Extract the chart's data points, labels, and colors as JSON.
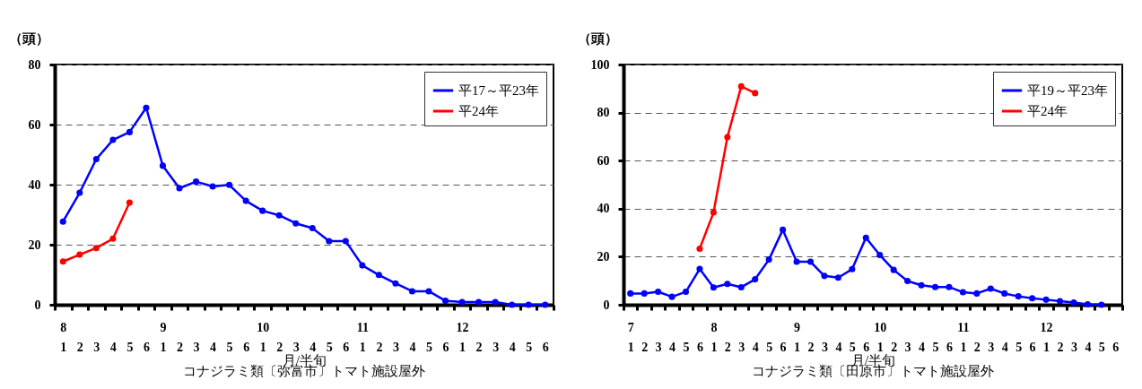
{
  "chart_data": [
    {
      "type": "line",
      "title": "コナジラミ類〔弥富市〕トマト施設屋外",
      "xlabel": "月/半旬",
      "ylabel": "（頭）",
      "categories": [
        "8\n1",
        "2",
        "3",
        "4",
        "5",
        "6",
        "9\n1",
        "2",
        "3",
        "4",
        "5",
        "6",
        "10\n1",
        "2",
        "3",
        "4",
        "5",
        "6",
        "11\n1",
        "2",
        "3",
        "4",
        "5",
        "6",
        "12\n1",
        "2",
        "3",
        "4",
        "5",
        "6"
      ],
      "series": [
        {
          "name": "平17～平23年",
          "color": "#0000ff",
          "values": [
            27.7,
            37.3,
            48.5,
            54.9,
            57.5,
            65.6,
            46.3,
            38.8,
            41,
            39.4,
            39.9,
            34.6,
            31.3,
            29.8,
            27.1,
            25.5,
            21.2,
            21.2,
            13.1,
            9.9,
            7.1,
            4.5,
            4.5,
            1.3,
            0.9,
            0.9,
            0.9,
            0,
            0,
            0
          ]
        },
        {
          "name": "平24年",
          "color": "#ff0000",
          "values": [
            14.4,
            16.7,
            18.9,
            22,
            34,
            null,
            null,
            null,
            null,
            null,
            null,
            null,
            null,
            null,
            null,
            null,
            null,
            null,
            null,
            null,
            null,
            null,
            null,
            null,
            null,
            null,
            null,
            null,
            null,
            null
          ]
        }
      ],
      "ylim": [
        0,
        80
      ],
      "yticks": [
        0,
        20,
        40,
        60,
        80
      ],
      "grid": "y",
      "legend": "top right",
      "marker": "circle"
    },
    {
      "type": "line",
      "title": "コナジラミ類〔田原市〕トマト施設屋外",
      "xlabel": "月/半旬",
      "ylabel": "（頭）",
      "categories": [
        "7\n1",
        "2",
        "3",
        "4",
        "5",
        "6",
        "8\n1",
        "2",
        "3",
        "4",
        "5",
        "6",
        "9\n1",
        "2",
        "3",
        "4",
        "5",
        "6",
        "10\n1",
        "2",
        "3",
        "4",
        "5",
        "6",
        "11\n1",
        "2",
        "3",
        "4",
        "5",
        "6",
        "12\n1",
        "2",
        "3",
        "4",
        "5",
        "6"
      ],
      "series": [
        {
          "name": "平19～平23年",
          "color": "#0000ff",
          "values": [
            4.7,
            4.7,
            5.4,
            3.3,
            5.4,
            14.9,
            7.2,
            8.7,
            7.3,
            10.6,
            18.8,
            31.2,
            17.9,
            17.9,
            12,
            11.3,
            14.8,
            27.9,
            20.7,
            14.5,
            9.9,
            8.1,
            7.4,
            7.4,
            5.2,
            4.7,
            6.7,
            4.7,
            3.5,
            2.7,
            2.1,
            1.5,
            0.9,
            0.2,
            0,
            null
          ]
        },
        {
          "name": "平24年",
          "color": "#ff0000",
          "values": [
            null,
            null,
            null,
            null,
            null,
            23.3,
            38.4,
            69.8,
            90.9,
            88.1,
            null,
            null,
            null,
            null,
            null,
            null,
            null,
            null,
            null,
            null,
            null,
            null,
            null,
            null,
            null,
            null,
            null,
            null,
            null,
            null,
            null,
            null,
            null,
            null,
            null,
            null
          ]
        }
      ],
      "ylim": [
        0,
        100
      ],
      "yticks": [
        0,
        20,
        40,
        60,
        80,
        100
      ],
      "grid": "y",
      "legend": "top right",
      "marker": "circle"
    }
  ]
}
